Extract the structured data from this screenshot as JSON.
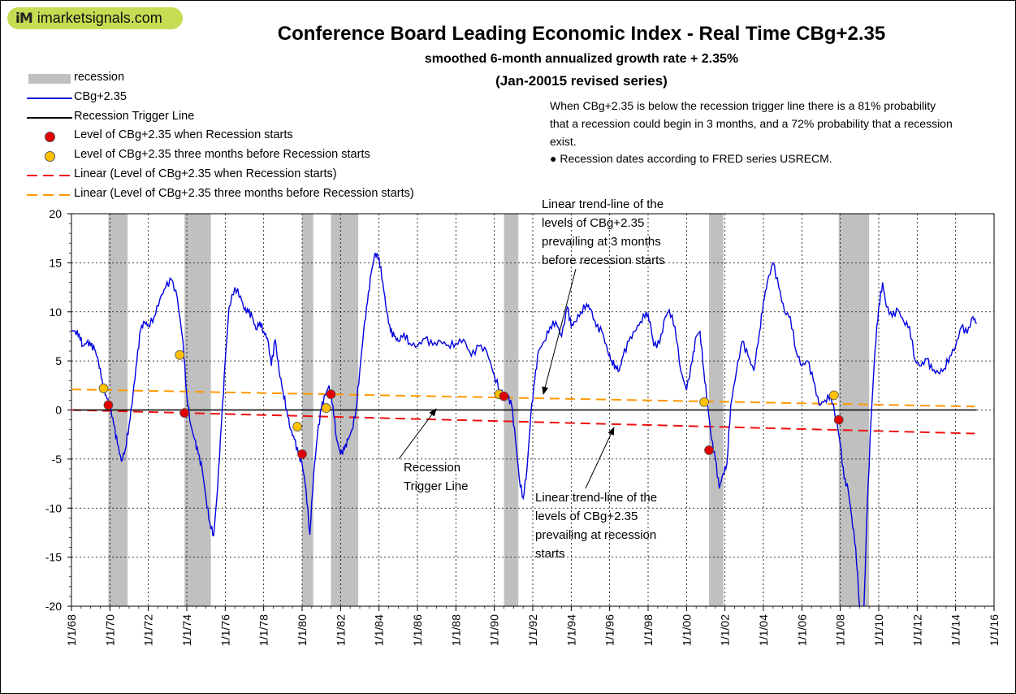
{
  "logo": {
    "mark": "iM",
    "text": "imarketsignals.com"
  },
  "header": {
    "title": "Conference Board Leading Economic Index - Real Time CBg+2.35",
    "subtitle": "smoothed 6-month annualized growth rate + 2.35%",
    "subtitle2": "(Jan-20015 revised series)"
  },
  "note": {
    "text": "When CBg+2.35 is below the recession trigger line there is a 81% probability that a recession could begin in 3 months, and a 72% probability that a recession exist.",
    "bullet": "● Recession dates according to FRED series USRECM."
  },
  "legend": {
    "recession": "recession",
    "series": "CBg+2.35",
    "trigger": "Recession Trigger Line",
    "red_dots": "Level of CBg+2.35 when Recession starts",
    "orange_dots": "Level of CBg+2.35 three months before Recession starts",
    "red_trend": "Linear (Level of CBg+2.35 when Recession starts)",
    "orange_trend": "Linear (Level of CBg+2.35 three months before Recession starts)"
  },
  "annotations": {
    "orange_trend": [
      "Linear trend-line of the",
      "levels of CBg+2.35",
      "prevailing at 3 months",
      "before recession starts"
    ],
    "trigger": [
      "Recession",
      "Trigger Line"
    ],
    "red_trend": [
      "Linear trend-line of the",
      "levels of CBg+2.35",
      "prevailing at recession",
      "starts"
    ]
  },
  "colors": {
    "series": "#0000e0",
    "recession": "#c0c0c0",
    "red_dot": "#e00000",
    "orange_dot": "#ffc000",
    "red_trend": "#ee1111",
    "orange_trend": "#ff9900",
    "logo_bg": "#c6dc53"
  },
  "chart_data": {
    "type": "line",
    "xlim": [
      1968.0,
      2016.0
    ],
    "ylim": [
      -20,
      20
    ],
    "yticks": [
      -20,
      -15,
      -10,
      -5,
      0,
      5,
      10,
      15,
      20
    ],
    "xtick_labels": [
      "1/1/68",
      "1/1/70",
      "1/1/72",
      "1/1/74",
      "1/1/76",
      "1/1/78",
      "1/1/80",
      "1/1/82",
      "1/1/84",
      "1/1/86",
      "1/1/88",
      "1/1/90",
      "1/1/92",
      "1/1/94",
      "1/1/96",
      "1/1/98",
      "1/1/00",
      "1/1/02",
      "1/1/04",
      "1/1/06",
      "1/1/08",
      "1/1/10",
      "1/1/12",
      "1/1/14",
      "1/1/16"
    ],
    "grid": true,
    "recessions": [
      [
        1969.92,
        1970.92
      ],
      [
        1973.88,
        1975.25
      ],
      [
        1980.0,
        1980.58
      ],
      [
        1981.5,
        1982.92
      ],
      [
        1990.5,
        1991.25
      ],
      [
        2001.17,
        2001.92
      ],
      [
        2007.92,
        2009.5
      ]
    ],
    "series": {
      "name": "CBg+2.35",
      "x": [
        1968.0,
        1968.2,
        1968.4,
        1968.6,
        1968.8,
        1969.0,
        1969.2,
        1969.4,
        1969.6,
        1969.8,
        1970.0,
        1970.2,
        1970.4,
        1970.6,
        1970.8,
        1971.0,
        1971.2,
        1971.4,
        1971.6,
        1971.8,
        1972.0,
        1972.3,
        1972.6,
        1972.9,
        1973.2,
        1973.5,
        1973.8,
        1974.0,
        1974.2,
        1974.4,
        1974.6,
        1974.8,
        1975.0,
        1975.2,
        1975.4,
        1975.6,
        1975.8,
        1976.0,
        1976.2,
        1976.5,
        1976.8,
        1977.0,
        1977.2,
        1977.4,
        1977.6,
        1977.8,
        1978.0,
        1978.2,
        1978.4,
        1978.6,
        1978.8,
        1979.0,
        1979.2,
        1979.4,
        1979.6,
        1979.8,
        1980.0,
        1980.2,
        1980.4,
        1980.6,
        1980.8,
        1981.0,
        1981.2,
        1981.4,
        1981.6,
        1981.8,
        1982.0,
        1982.2,
        1982.4,
        1982.6,
        1982.8,
        1983.0,
        1983.2,
        1983.4,
        1983.6,
        1983.8,
        1984.0,
        1984.2,
        1984.4,
        1984.6,
        1984.8,
        1985.0,
        1985.3,
        1985.6,
        1986.0,
        1986.4,
        1986.8,
        1987.2,
        1987.6,
        1988.0,
        1988.4,
        1988.8,
        1989.2,
        1989.6,
        1990.0,
        1990.3,
        1990.5,
        1990.7,
        1990.9,
        1991.1,
        1991.3,
        1991.5,
        1991.7,
        1991.9,
        1992.1,
        1992.3,
        1992.6,
        1992.9,
        1993.2,
        1993.5,
        1993.8,
        1994.0,
        1994.2,
        1994.5,
        1994.8,
        1995.0,
        1995.3,
        1995.6,
        1995.9,
        1996.1,
        1996.3,
        1996.5,
        1996.7,
        1997.0,
        1997.3,
        1997.6,
        1997.9,
        1998.1,
        1998.3,
        1998.6,
        1998.9,
        1999.1,
        1999.4,
        1999.7,
        2000.0,
        2000.3,
        2000.5,
        2000.7,
        2000.9,
        2001.1,
        2001.3,
        2001.5,
        2001.7,
        2001.9,
        2002.1,
        2002.3,
        2002.6,
        2002.9,
        2003.2,
        2003.5,
        2003.8,
        2004.0,
        2004.2,
        2004.5,
        2004.8,
        2005.1,
        2005.4,
        2005.7,
        2006.0,
        2006.3,
        2006.6,
        2006.9,
        2007.2,
        2007.5,
        2007.8,
        2008.0,
        2008.2,
        2008.4,
        2008.6,
        2008.8,
        2009.0,
        2009.2,
        2009.4,
        2009.6,
        2009.8,
        2010.0,
        2010.2,
        2010.4,
        2010.7,
        2011.0,
        2011.3,
        2011.6,
        2011.9,
        2012.2,
        2012.5,
        2012.8,
        2013.1,
        2013.4,
        2013.7,
        2014.0,
        2014.3,
        2014.6,
        2014.9,
        2015.1
      ],
      "y": [
        8.1,
        8.0,
        7.7,
        6.5,
        6.9,
        6.6,
        6.2,
        5.0,
        3.0,
        1.5,
        0.5,
        -1.5,
        -3.5,
        -5.2,
        -4.0,
        -1.5,
        1.5,
        5.0,
        8.2,
        9.0,
        8.6,
        9.5,
        11.3,
        12.5,
        13.3,
        11.5,
        7.0,
        1.5,
        -1.5,
        -3.0,
        -4.5,
        -6.0,
        -9.0,
        -11.5,
        -12.8,
        -8.0,
        -1.5,
        5.0,
        10.5,
        12.5,
        11.6,
        10.2,
        10.0,
        9.5,
        8.2,
        9.0,
        8.0,
        7.3,
        4.5,
        7.2,
        4.0,
        2.0,
        0.0,
        -2.0,
        -3.0,
        -4.5,
        -5.5,
        -8.0,
        -12.7,
        -6.5,
        -2.5,
        0.2,
        1.5,
        2.5,
        0.5,
        -3.0,
        -4.5,
        -4.0,
        -3.0,
        -2.0,
        0.0,
        4.0,
        8.0,
        11.0,
        14.0,
        16.0,
        15.5,
        13.0,
        10.0,
        8.0,
        7.5,
        7.0,
        7.8,
        6.8,
        6.5,
        7.3,
        6.6,
        7.0,
        6.6,
        6.8,
        7.2,
        5.5,
        6.5,
        6.0,
        3.5,
        2.0,
        1.6,
        1.3,
        0.5,
        -3.0,
        -7.0,
        -9.0,
        -6.0,
        -0.5,
        3.0,
        6.0,
        7.0,
        8.5,
        9.0,
        7.5,
        10.5,
        8.5,
        9.0,
        10.0,
        10.8,
        10.3,
        8.5,
        8.0,
        6.0,
        5.0,
        4.5,
        4.0,
        5.5,
        7.0,
        8.0,
        9.0,
        10.0,
        9.0,
        6.5,
        6.8,
        9.5,
        10.2,
        8.5,
        4.0,
        2.0,
        5.0,
        7.5,
        8.0,
        4.0,
        0.5,
        -3.0,
        -5.0,
        -8.0,
        -6.5,
        -5.5,
        0.5,
        4.0,
        7.0,
        5.5,
        4.0,
        8.0,
        11.0,
        13.0,
        15.0,
        12.5,
        10.0,
        9.5,
        6.0,
        4.5,
        5.0,
        3.0,
        0.5,
        1.0,
        1.5,
        -1.0,
        -3.5,
        -7.0,
        -8.0,
        -11.0,
        -14.0,
        -20.0,
        -22.0,
        -10.0,
        -1.0,
        6.0,
        10.5,
        13.0,
        10.5,
        9.5,
        10.2,
        9.0,
        8.5,
        5.0,
        4.5,
        5.2,
        4.0,
        3.8,
        4.2,
        5.5,
        6.5,
        8.5,
        7.8,
        9.5,
        8.8
      ]
    },
    "trigger_line": {
      "name": "Recession Trigger Line",
      "y": 0
    },
    "red_dots": {
      "x": [
        1969.92,
        1973.88,
        1980.0,
        1981.5,
        1990.5,
        2001.17,
        2007.92
      ],
      "y": [
        0.5,
        -0.3,
        -4.5,
        1.6,
        1.4,
        -4.1,
        -1.0
      ]
    },
    "orange_dots": {
      "x": [
        1969.67,
        1973.63,
        1979.75,
        1981.25,
        1990.25,
        2000.92,
        2007.67
      ],
      "y": [
        2.2,
        5.6,
        -1.7,
        0.2,
        1.6,
        0.8,
        1.5
      ]
    },
    "red_trend": {
      "x": [
        1968.0,
        2015.0
      ],
      "y": [
        0.0,
        -2.4
      ]
    },
    "orange_trend": {
      "x": [
        1968.0,
        2015.0
      ],
      "y": [
        2.1,
        0.35
      ]
    }
  }
}
